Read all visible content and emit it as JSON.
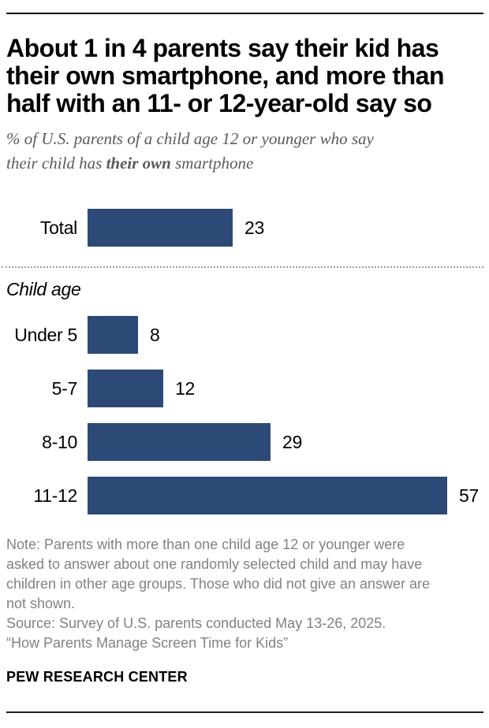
{
  "header": {
    "title_lines": [
      "About 1 in 4 parents say their kid has",
      "their own smartphone, and more than",
      "half with an 11- or 12-year-old say so"
    ],
    "subtitle_line1": "% of U.S. parents of a child age 12 or younger who say",
    "subtitle_line2_prefix": "their child has ",
    "subtitle_line2_bold": "their own",
    "subtitle_line2_suffix": " smartphone"
  },
  "chart_data": {
    "type": "bar",
    "orientation": "horizontal",
    "value_unit": "%",
    "title": "About 1 in 4 parents say their kid has their own smartphone, and more than half with an 11- or 12-year-old say so",
    "subtitle": "% of U.S. parents of a child age 12 or younger who say their child has their own smartphone",
    "total_row": {
      "label": "Total",
      "value": 23
    },
    "group_label": "Child age",
    "categories": [
      "Under 5",
      "5-7",
      "8-10",
      "11-12"
    ],
    "values": [
      8,
      12,
      29,
      57
    ],
    "xlim": [
      0,
      62
    ],
    "grid": false,
    "legend": "none",
    "value_labels": "outside-end",
    "bar_color": "#2C4A75"
  },
  "footer": {
    "note": "Note: Parents with more than one child age 12 or younger were asked to answer about one randomly selected child and may have children in other age groups. Those who did not give an answer are not shown.",
    "source": "Source: Survey of U.S. parents conducted May 13-26, 2025.",
    "report": "“How Parents Manage Screen Time for Kids”",
    "brand": "PEW RESEARCH CENTER"
  }
}
